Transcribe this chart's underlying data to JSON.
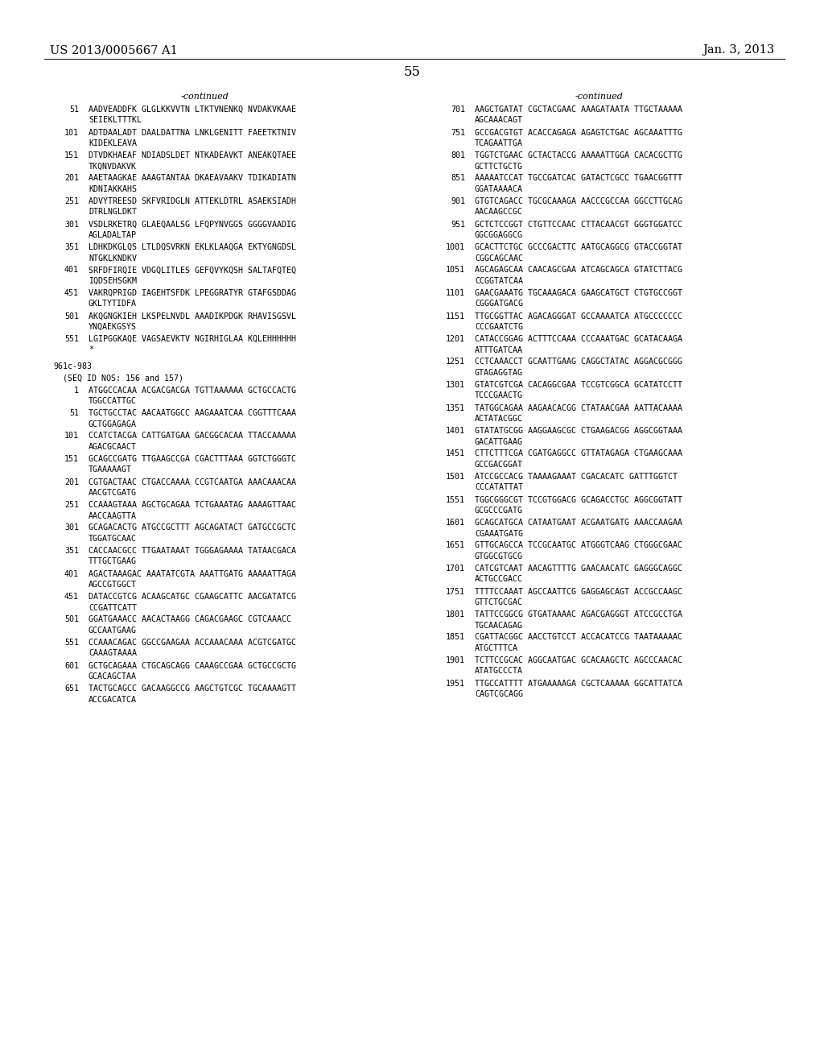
{
  "header_left": "US 2013/0005667 A1",
  "header_right": "Jan. 3, 2013",
  "page_number": "55",
  "background_color": "#ffffff",
  "text_color": "#000000",
  "left_column": {
    "continued_label": "-continued",
    "entries": [
      {
        "num": "51",
        "line1": "AADVEADDFK GLGLKKVVTN LTKTVNENKQ NVDAKVKAAE",
        "line2": "SEIEKLTTTKL"
      },
      {
        "num": "101",
        "line1": "ADTDAALADT DAALDATTNA LNKLGENITT FAEETKTNIV",
        "line2": "KIDEKLEAVA"
      },
      {
        "num": "151",
        "line1": "DTVDKHAEAF NDIADSLDET NTKADEAVKT ANEAKQTAEE",
        "line2": "TKQNVDAKVK"
      },
      {
        "num": "201",
        "line1": "AAETAAGKAE AAAGTANTAA DKAEAVAAKV TDIKADIATN",
        "line2": "KDNIAKKAHS"
      },
      {
        "num": "251",
        "line1": "ADVYTREESD SKFVRIDGLN ATTEKLDTRL ASAEKSIADH",
        "line2": "DTRLNGLDKT"
      },
      {
        "num": "301",
        "line1": "VSDLRKETRQ GLAEQAALSG LFQPYNVGGS GGGGVAADIG",
        "line2": "AGLADALTAP"
      },
      {
        "num": "351",
        "line1": "LDHKDKGLQS LTLDQSVRKN EKLKLAAQGA EKTYGNGDSL",
        "line2": "NTGKLKNDKV"
      },
      {
        "num": "401",
        "line1": "SRFDFIRQIE VDGQLITLES GEFQVYKQSH SALTAFQTEQ",
        "line2": "IQDSEHSGKM"
      },
      {
        "num": "451",
        "line1": "VAKRQPRIGD IAGEHTSFDK LPEGGRATYR GTAFGSDDAG",
        "line2": "GKLTYTIDFA"
      },
      {
        "num": "501",
        "line1": "AKQGNGKIEH LKSPELNVDL AAADIKPDGK RHAVISGSVL",
        "line2": "YNQAEKGSYS"
      },
      {
        "num": "551",
        "line1": "LGIPGGKAQE VAGSAEVKTV NGIRHIGLAA KQLEHHHHHH",
        "line2": "*"
      },
      {
        "num": "BLANK",
        "line1": "",
        "line2": ""
      },
      {
        "num": "SECTION",
        "line1": "961c-983",
        "line2": ""
      },
      {
        "num": "SEQID",
        "line1": "(SEQ ID NOS: 156 and 157)",
        "line2": ""
      },
      {
        "num": "1",
        "line1": "ATGGCCACAA ACGACGACGA TGTTAAAAAA GCTGCCACTG",
        "line2": "TGGCCATTGC"
      },
      {
        "num": "51",
        "line1": "TGCTGCCTAC AACAATGGCC AAGAAATCAA CGGTTTCAAA",
        "line2": "GCTGGAGAGA"
      },
      {
        "num": "101",
        "line1": "CCATCTACGA CATTGATGAA GACGGCACAA TTACCAAAAA",
        "line2": "AGACGCAACT"
      },
      {
        "num": "151",
        "line1": "GCAGCCGATG TTGAAGCCGA CGACTTTAAA GGTCTGGGTC",
        "line2": "TGAAAAAGT"
      },
      {
        "num": "201",
        "line1": "CGTGACTAAC CTGACCAAAA CCGTCAATGA AAACAAACAA",
        "line2": "AACGTCGATG"
      },
      {
        "num": "251",
        "line1": "CCAAAGTAAA AGCTGCAGAA TCTGAAATAG AAAAGTTAAC",
        "line2": "AACCAAGTTA"
      },
      {
        "num": "301",
        "line1": "GCAGACACTG ATGCCGCTTT AGCAGATACT GATGCCGCTC",
        "line2": "TGGATGCAAC"
      },
      {
        "num": "351",
        "line1": "CACCAACGCC TTGAATAAAT TGGGAGAAAA TATAACGACA",
        "line2": "TTTGCTGAAG"
      },
      {
        "num": "401",
        "line1": "AGACTAAAGAC AAATATCGTA AAATTGATG AAAAATTAGA",
        "line2": "AGCCGTGGCT"
      },
      {
        "num": "451",
        "line1": "DATACCGTCG ACAAGCATGC CGAAGCATTC AACGATATCG",
        "line2": "CCGATTCATT"
      },
      {
        "num": "501",
        "line1": "GGATGAAACC AACACTAAGG CAGACGAAGC CGTCAAACC",
        "line2": "GCCAATGAAG"
      },
      {
        "num": "551",
        "line1": "CCAAACAGAC GGCCGAAGAA ACCAAACAAA ACGTCGATGC",
        "line2": "CAAAGTAAAA"
      },
      {
        "num": "601",
        "line1": "GCTGCAGAAA CTGCAGCAGG CAAAGCCGAA GCTGCCGCTG",
        "line2": "GCACAGCTAA"
      },
      {
        "num": "651",
        "line1": "TACTGCAGCC GACAAGGCCG AAGCTGTCGC TGCAAAAGTT",
        "line2": "ACCGACATCA"
      }
    ]
  },
  "right_column": {
    "continued_label": "-continued",
    "entries": [
      {
        "num": "701",
        "line1": "AAGCTGATAT CGCTACGAAC AAAGATAATA TTGCTAAAAA",
        "line2": "AGCAAACAGT"
      },
      {
        "num": "751",
        "line1": "GCCGACGTGT ACACCAGAGA AGAGTCTGAC AGCAAATTTG",
        "line2": "TCAGAATTGA"
      },
      {
        "num": "801",
        "line1": "TGGTCTGAAC GCTACTACCG AAAAATTGGA CACACGCTTG",
        "line2": "GCTTCTGCTG"
      },
      {
        "num": "851",
        "line1": "AAAAATCCAT TGCCGATCAC GATACTCGCC TGAACGGTTT",
        "line2": "GGATAAAACA"
      },
      {
        "num": "901",
        "line1": "GTGTCAGACC TGCGCAAAGA AACCCGCCAA GGCCTTGCAG",
        "line2": "AACAAGCCGC"
      },
      {
        "num": "951",
        "line1": "GCTCTCCGGT CTGTTCCAAC CTTACAACGT GGGTGGATCC",
        "line2": "GGCGGAGGCG"
      },
      {
        "num": "1001",
        "line1": "GCACTTCTGC GCCCGACTTC AATGCAGGCG GTACCGGTAT",
        "line2": "CGGCAGCAAC"
      },
      {
        "num": "1051",
        "line1": "AGCAGAGCAA CAACAGCGAA ATCAGCAGCA GTATCTTACG",
        "line2": "CCGGTATCAA"
      },
      {
        "num": "1101",
        "line1": "GAACGAAATG TGCAAAGACA GAAGCATGCT CTGTGCCGGT",
        "line2": "CGGGATGACG"
      },
      {
        "num": "1151",
        "line1": "TTGCGGTTAC AGACAGGGAT GCCAAAATCA ATGCCCCCCC",
        "line2": "CCCGAATCTG"
      },
      {
        "num": "1201",
        "line1": "CATACCGGAG ACTTTCCAAA CCCAAATGAC GCATACAAGA",
        "line2": "ATTTGATCAA"
      },
      {
        "num": "1251",
        "line1": "CCTCAAACCT GCAATTGAAG CAGGCTATAC AGGACGCGGG",
        "line2": "GTAGAGGTAG"
      },
      {
        "num": "1301",
        "line1": "GTATCGTCGA CACAGGCGAA TCCGTCGGCA GCATATCCTT",
        "line2": "TCCCGAACTG"
      },
      {
        "num": "1351",
        "line1": "TATGGCAGAA AAGAACACGG CTATAACGAA AATTACAAAA",
        "line2": "ACTATACGGC"
      },
      {
        "num": "1401",
        "line1": "GTATATGCGG AAGGAAGCGC CTGAAGACGG AGGCGGTAAA",
        "line2": "GACATTGAAG"
      },
      {
        "num": "1451",
        "line1": "CTTCTTTCGA CGATGAGGCC GTTATAGAGA CTGAAGCAAA",
        "line2": "GCCGACGGAT"
      },
      {
        "num": "1501",
        "line1": "ATCCGCCACG TAAAAGAAAT CGACACATC GATTTGGTCT",
        "line2": "CCCATATTAT"
      },
      {
        "num": "1551",
        "line1": "TGGCGGGCGT TCCGTGGACG GCAGACCTGC AGGCGGTATT",
        "line2": "GCGCCCGATG"
      },
      {
        "num": "1601",
        "line1": "GCAGCATGCA CATAATGAAT ACGAATGATG AAACCAAGAA",
        "line2": "CGAAATGATG"
      },
      {
        "num": "1651",
        "line1": "GTTGCAGCCA TCCGCAATGC ATGGGTCAAG CTGGGCGAAC",
        "line2": "GTGGCGTGCG"
      },
      {
        "num": "1701",
        "line1": "CATCGTCAAT AACAGTTTTG GAACAACATC GAGGGCAGGC",
        "line2": "ACTGCCGACC"
      },
      {
        "num": "1751",
        "line1": "TTTTCCAAAT AGCCAATTCG GAGGAGCAGT ACCGCCAAGC",
        "line2": "GTTCTGCGAC"
      },
      {
        "num": "1801",
        "line1": "TATTCCGGCG GTGATAAAAC AGACGAGGGT ATCCGCCTGA",
        "line2": "TGCAACAGAG"
      },
      {
        "num": "1851",
        "line1": "CGATTACGGC AACCTGTCCT ACCACATCCG TAATAAAAAC",
        "line2": "ATGCTTTCA"
      },
      {
        "num": "1901",
        "line1": "TCTTCCGCAC AGGCAATGAC GCACAAGCTC AGCCCAACAC",
        "line2": "ATATGCCCTA"
      },
      {
        "num": "1951",
        "line1": "TTGCCATTTT ATGAAAAAGA CGCTCAAAAA GGCATTATCA",
        "line2": "CAGTCGCAGG"
      }
    ]
  }
}
